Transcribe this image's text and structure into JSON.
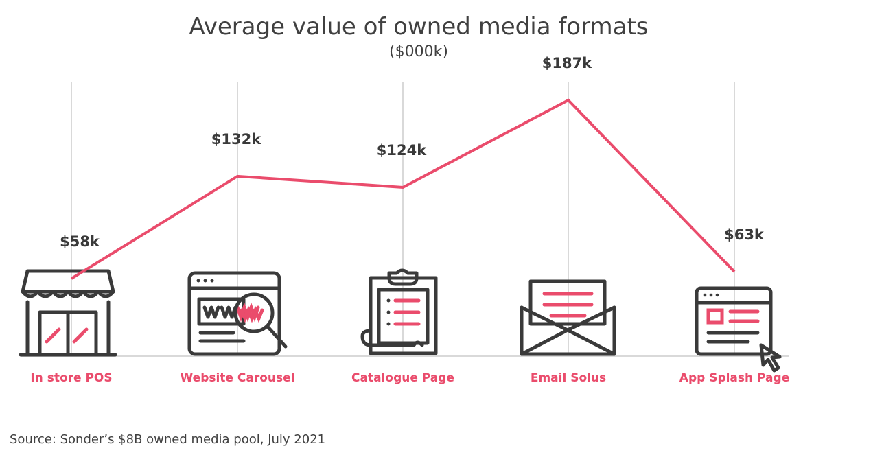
{
  "chart_data": {
    "type": "line",
    "title": "Average value of owned media formats",
    "subtitle": "($000k)",
    "categories": [
      "In store POS",
      "Website Carousel",
      "Catalogue Page",
      "Email  Solus",
      "App Splash Page"
    ],
    "values": [
      58,
      132,
      124,
      187,
      63
    ],
    "data_labels": [
      "$58k",
      "$132k",
      "$124k",
      "$187k",
      "$63k"
    ],
    "icons": [
      "storefront-icon",
      "browser-www-search-icon",
      "clipboard-checklist-icon",
      "open-envelope-icon",
      "app-window-cursor-icon"
    ],
    "grid": true,
    "line_color": "#ea4c6c",
    "category_color": "#ea4c6c",
    "source": "Source: Sonder’s $8B owned media pool, July 2021"
  }
}
